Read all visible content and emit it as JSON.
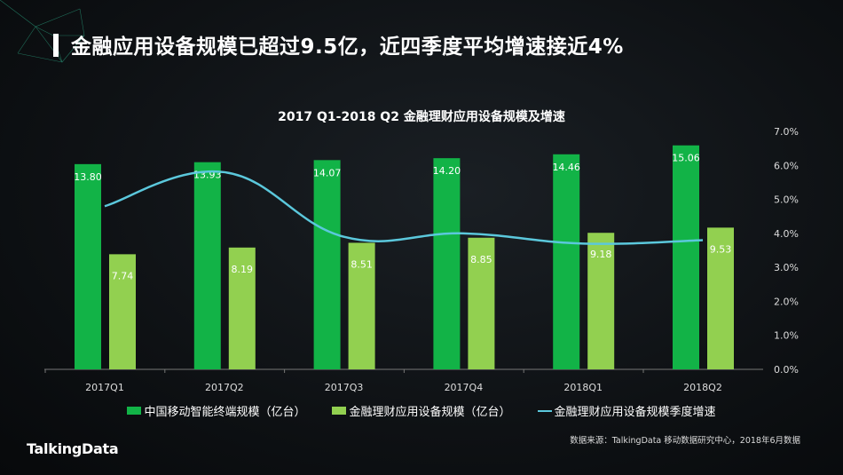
{
  "header": {
    "title": "金融应用设备规模已超过9.5亿，近四季度平均增速接近4%"
  },
  "chart_data": {
    "type": "bar+line",
    "title": "2017 Q1-2018 Q2 金融理财应用设备规模及增速",
    "categories": [
      "2017Q1",
      "2017Q2",
      "2017Q3",
      "2017Q4",
      "2018Q1",
      "2018Q2"
    ],
    "series": [
      {
        "name": "中国移动智能终端规模（亿台）",
        "type": "bar",
        "axis": "left",
        "color": "#12b347",
        "values": [
          13.8,
          13.93,
          14.07,
          14.2,
          14.46,
          15.06
        ],
        "labels": [
          "13.80",
          "13.93",
          "14.07",
          "14.20",
          "14.46",
          "15.06"
        ]
      },
      {
        "name": "金融理财应用设备规模（亿台）",
        "type": "bar",
        "axis": "left",
        "color": "#92d050",
        "values": [
          7.74,
          8.19,
          8.51,
          8.85,
          9.18,
          9.53
        ],
        "labels": [
          "7.74",
          "8.19",
          "8.51",
          "8.85",
          "9.18",
          "9.53"
        ]
      },
      {
        "name": "金融理财应用设备规模季度增速",
        "type": "line",
        "axis": "right",
        "color": "#5bc8dc",
        "values": [
          4.8,
          5.8,
          3.9,
          4.0,
          3.7,
          3.8
        ]
      }
    ],
    "left_axis": {
      "visible": false,
      "ylim": [
        0,
        16
      ]
    },
    "right_axis": {
      "ylim": [
        0,
        7
      ],
      "ticks": [
        "0.0%",
        "1.0%",
        "2.0%",
        "3.0%",
        "4.0%",
        "5.0%",
        "6.0%",
        "7.0%"
      ]
    },
    "grid": false,
    "legend": "bottom"
  },
  "footer": {
    "source": "数据来源：TalkingData 移动数据研究中心，2018年6月数据",
    "logo": "TalkingData"
  }
}
